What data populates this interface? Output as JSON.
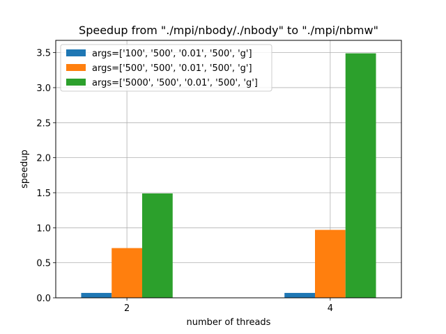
{
  "chart_data": {
    "type": "bar",
    "title": "Speedup from \"./mpi/nbody/./nbody\" to \"./mpi/nbmw\"",
    "xlabel": "number of threads",
    "ylabel": "speedup",
    "categories": [
      "2",
      "4"
    ],
    "series": [
      {
        "name": "args=['100', '500', '0.01', '500', 'g']",
        "color": "#1f77b4",
        "values": [
          0.07,
          0.07
        ]
      },
      {
        "name": "args=['500', '500', '0.01', '500', 'g']",
        "color": "#ff7f0e",
        "values": [
          0.71,
          0.97
        ]
      },
      {
        "name": "args=['5000', '500', '0.01', '500', 'g']",
        "color": "#2ca02c",
        "values": [
          1.49,
          3.49
        ]
      }
    ],
    "ylim": [
      0,
      3.675
    ],
    "yticks": [
      "0.0",
      "0.5",
      "1.0",
      "1.5",
      "2.0",
      "2.5",
      "3.0",
      "3.5"
    ],
    "grid": true,
    "legend_position": "top-left"
  }
}
